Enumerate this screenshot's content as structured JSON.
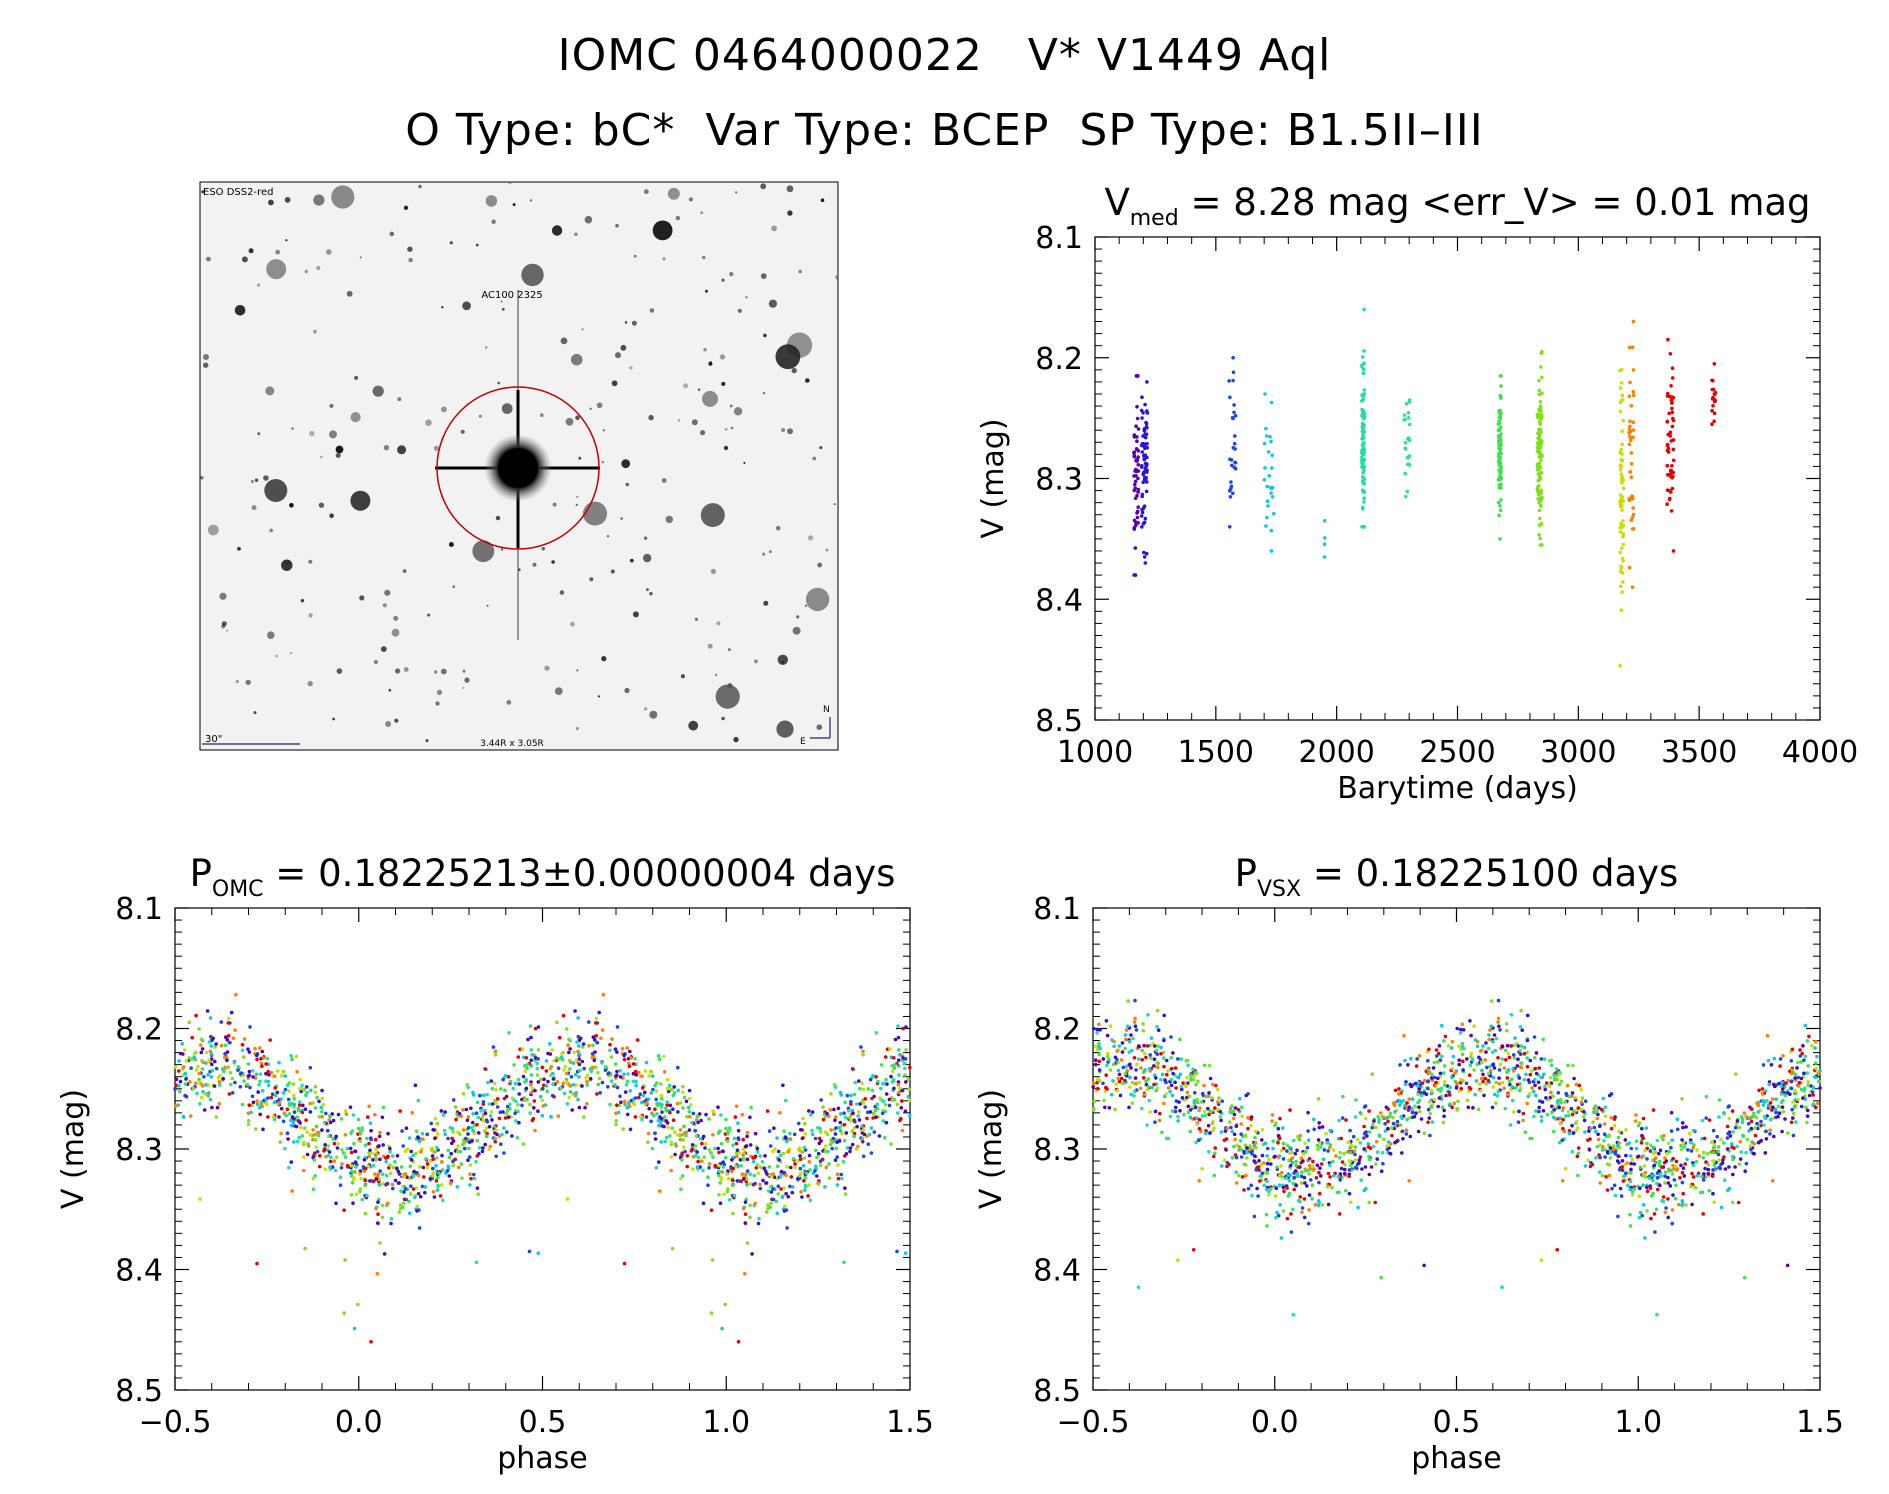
{
  "header": {
    "line1": "IOMC 0464000022   V* V1449 Aql",
    "line2": "O Type: bC*  Var Type: BCEP  SP Type: B1.5II–III"
  },
  "finder": {
    "survey_label": "ESO DSS2-red",
    "target_label": "AC100 2325",
    "scale_label": "30\"",
    "fov_label": "3.44R x 3.05R",
    "north_label": "N",
    "east_label": "E",
    "circle_color": "#c00000"
  },
  "chart_data": [
    {
      "id": "lightcurve",
      "type": "scatter",
      "title_main": "V",
      "title_sub": "med",
      "title_rest": " = 8.28 mag <err_V> = 0.01 mag",
      "xlabel": "Barytime (days)",
      "ylabel": "V (mag)",
      "xlim": [
        1000,
        4000
      ],
      "ylim": [
        8.1,
        8.5
      ],
      "y_inverted": true,
      "xticks": [
        1000,
        1500,
        2000,
        2500,
        3000,
        3500,
        4000
      ],
      "xtick_labels": [
        "1000",
        "1500",
        "2000",
        "2500",
        "3000",
        "3500",
        "4000"
      ],
      "yticks": [
        8.1,
        8.2,
        8.3,
        8.4,
        8.5
      ],
      "ytick_labels": [
        "8.1",
        "8.2",
        "8.3",
        "8.4",
        "8.5"
      ],
      "groups": [
        {
          "t": 1170,
          "w": 20,
          "center": 8.29,
          "min": 8.215,
          "max": 8.38,
          "n": 55,
          "color": "#5b00a8"
        },
        {
          "t": 1205,
          "w": 25,
          "center": 8.29,
          "min": 8.22,
          "max": 8.37,
          "n": 70,
          "color": "#2a14d8"
        },
        {
          "t": 1570,
          "w": 30,
          "center": 8.27,
          "min": 8.2,
          "max": 8.34,
          "n": 28,
          "color": "#1848e6"
        },
        {
          "t": 1720,
          "w": 40,
          "center": 8.3,
          "min": 8.23,
          "max": 8.36,
          "n": 26,
          "color": "#10c8e0"
        },
        {
          "t": 1950,
          "w": 4,
          "center": 8.35,
          "min": 8.335,
          "max": 8.365,
          "n": 4,
          "color": "#10d0c0"
        },
        {
          "t": 2110,
          "w": 12,
          "center": 8.27,
          "min": 8.16,
          "max": 8.34,
          "n": 90,
          "color": "#20e0a0"
        },
        {
          "t": 2290,
          "w": 25,
          "center": 8.27,
          "min": 8.235,
          "max": 8.315,
          "n": 24,
          "color": "#30e090"
        },
        {
          "t": 2675,
          "w": 12,
          "center": 8.28,
          "min": 8.215,
          "max": 8.35,
          "n": 90,
          "color": "#40e050"
        },
        {
          "t": 2840,
          "w": 20,
          "center": 8.28,
          "min": 8.195,
          "max": 8.355,
          "n": 110,
          "color": "#80e020"
        },
        {
          "t": 3180,
          "w": 15,
          "center": 8.3,
          "min": 8.21,
          "max": 8.455,
          "n": 70,
          "color": "#c8e000"
        },
        {
          "t": 3220,
          "w": 20,
          "center": 8.28,
          "min": 8.17,
          "max": 8.39,
          "n": 40,
          "color": "#ff8000"
        },
        {
          "t": 3380,
          "w": 30,
          "center": 8.26,
          "min": 8.185,
          "max": 8.36,
          "n": 55,
          "color": "#e80000"
        },
        {
          "t": 3560,
          "w": 15,
          "center": 8.23,
          "min": 8.205,
          "max": 8.255,
          "n": 18,
          "color": "#e80000"
        }
      ]
    },
    {
      "id": "phase_omc",
      "type": "scatter",
      "title_main": "P",
      "title_sub": "OMC",
      "title_rest": " = 0.18225213±0.00000004 days",
      "xlabel": "phase",
      "ylabel": "V (mag)",
      "xlim": [
        -0.5,
        1.5
      ],
      "ylim": [
        8.1,
        8.5
      ],
      "y_inverted": true,
      "xticks": [
        -0.5,
        0.0,
        0.5,
        1.0,
        1.5
      ],
      "xtick_labels": [
        "−0.5",
        "0.0",
        "0.5",
        "1.0",
        "1.5"
      ],
      "yticks": [
        8.1,
        8.2,
        8.3,
        8.4,
        8.5
      ],
      "ytick_labels": [
        "8.1",
        "8.2",
        "8.3",
        "8.4",
        "8.5"
      ],
      "mean_mag": 8.275,
      "amplitude": 0.045,
      "max_phase": 0.6,
      "scatter": 0.02,
      "points_per_cycle": 1000,
      "colors": [
        "#5b00a8",
        "#2a14d8",
        "#1848e6",
        "#10c8e0",
        "#20e0a0",
        "#40e050",
        "#80e020",
        "#c8e000",
        "#ff8000",
        "#e80000"
      ]
    },
    {
      "id": "phase_vsx",
      "type": "scatter",
      "title_main": "P",
      "title_sub": "VSX",
      "title_rest": " = 0.18225100 days",
      "xlabel": "phase",
      "ylabel": "V (mag)",
      "xlim": [
        -0.5,
        1.5
      ],
      "ylim": [
        8.1,
        8.5
      ],
      "y_inverted": true,
      "xticks": [
        -0.5,
        0.0,
        0.5,
        1.0,
        1.5
      ],
      "xtick_labels": [
        "−0.5",
        "0.0",
        "0.5",
        "1.0",
        "1.5"
      ],
      "yticks": [
        8.1,
        8.2,
        8.3,
        8.4,
        8.5
      ],
      "ytick_labels": [
        "8.1",
        "8.2",
        "8.3",
        "8.4",
        "8.5"
      ],
      "mean_mag": 8.275,
      "amplitude": 0.045,
      "max_phase": 0.58,
      "scatter": 0.02,
      "points_per_cycle": 1000,
      "colors": [
        "#5b00a8",
        "#2a14d8",
        "#1848e6",
        "#10c8e0",
        "#20e0a0",
        "#40e050",
        "#80e020",
        "#c8e000",
        "#ff8000",
        "#e80000"
      ]
    }
  ]
}
